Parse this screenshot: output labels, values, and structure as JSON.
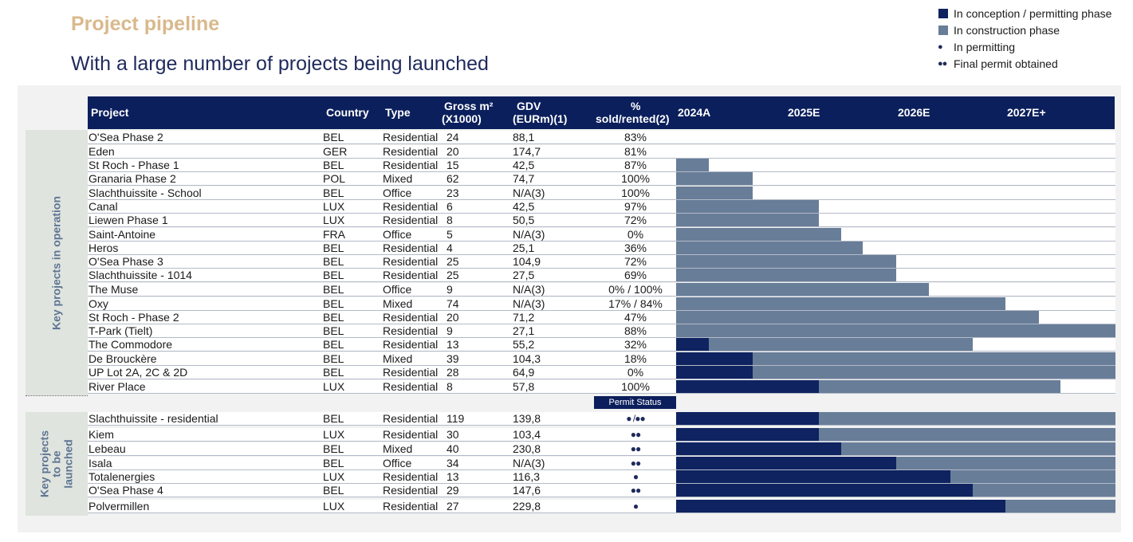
{
  "title": "Project pipeline",
  "subtitle": "With a large number of projects being launched",
  "legend": [
    {
      "label": "In conception / permitting phase",
      "kind": "swatch",
      "color": "#0e2360",
      "icon": "dark-square-icon"
    },
    {
      "label": "In construction phase",
      "kind": "swatch",
      "color": "#687d98",
      "icon": "grey-square-icon"
    },
    {
      "label": "In permitting",
      "kind": "dots",
      "dots": "●",
      "icon": "single-dot-icon"
    },
    {
      "label": "Final permit obtained",
      "kind": "dots",
      "dots": "●●",
      "icon": "double-dot-icon"
    }
  ],
  "headers": {
    "project": "Project",
    "country": "Country",
    "type": "Type",
    "gross_line1": "Gross m²",
    "gross_line2": "(X1000)",
    "gdv_line1": "GDV",
    "gdv_line2": "(EURm)(1)",
    "pct_line1": "%",
    "pct_line2": "sold/rented(2)",
    "years": [
      "2024A",
      "2025E",
      "2026E",
      "2027E+"
    ]
  },
  "group_labels": {
    "operation": "Key projects in operation",
    "launch_lines": [
      "Key projects",
      "to be",
      "launched"
    ]
  },
  "permit_status_label": "Permit Status",
  "colors": {
    "conception": "#0e2360",
    "construction": "#687d98",
    "header": "#0b1f5c"
  },
  "chart_data": {
    "type": "table",
    "timeline_axis": {
      "min": 0,
      "max": 4,
      "unit": "years from start of 2024",
      "labels": [
        "2024A",
        "2025E",
        "2026E",
        "2027E+"
      ]
    },
    "groups": [
      {
        "name": "Key projects in operation",
        "rows": [
          {
            "project": "O'Sea Phase 2",
            "country": "BEL",
            "type": "Residential",
            "gross": "24",
            "gdv": "88,1",
            "pct": "83%",
            "conception": null,
            "construction": null
          },
          {
            "project": "Eden",
            "country": "GER",
            "type": "Residential",
            "gross": "20",
            "gdv": "174,7",
            "pct": "81%",
            "conception": null,
            "construction": null
          },
          {
            "project": "St Roch - Phase 1",
            "country": "BEL",
            "type": "Residential",
            "gross": "15",
            "gdv": "42,5",
            "pct": "87%",
            "conception": null,
            "construction": [
              0,
              0.3
            ]
          },
          {
            "project": "Granaria Phase 2",
            "country": "POL",
            "type": "Mixed",
            "gross": "62",
            "gdv": "74,7",
            "pct": "100%",
            "conception": null,
            "construction": [
              0,
              0.7
            ]
          },
          {
            "project": "Slachthuissite - School",
            "country": "BEL",
            "type": "Office",
            "gross": "23",
            "gdv": "N/A(3)",
            "pct": "100%",
            "conception": null,
            "construction": [
              0,
              0.7
            ]
          },
          {
            "project": "Canal",
            "country": "LUX",
            "type": "Residential",
            "gross": "6",
            "gdv": "42,5",
            "pct": "97%",
            "conception": null,
            "construction": [
              0,
              1.3
            ]
          },
          {
            "project": "Liewen Phase 1",
            "country": "LUX",
            "type": "Residential",
            "gross": "8",
            "gdv": "50,5",
            "pct": "72%",
            "conception": null,
            "construction": [
              0,
              1.3
            ]
          },
          {
            "project": "Saint-Antoine",
            "country": "FRA",
            "type": "Office",
            "gross": "5",
            "gdv": "N/A(3)",
            "pct": "0%",
            "conception": null,
            "construction": [
              0,
              1.5
            ]
          },
          {
            "project": "Heros",
            "country": "BEL",
            "type": "Residential",
            "gross": "4",
            "gdv": "25,1",
            "pct": "36%",
            "conception": null,
            "construction": [
              0,
              1.7
            ]
          },
          {
            "project": "O'Sea Phase 3",
            "country": "BEL",
            "type": "Residential",
            "gross": "25",
            "gdv": "104,9",
            "pct": "72%",
            "conception": null,
            "construction": [
              0,
              2.0
            ]
          },
          {
            "project": "Slachthuissite - 1014",
            "country": "BEL",
            "type": "Residential",
            "gross": "25",
            "gdv": "27,5",
            "pct": "69%",
            "conception": null,
            "construction": [
              0,
              2.0
            ]
          },
          {
            "project": "The Muse",
            "country": "BEL",
            "type": "Office",
            "gross": "9",
            "gdv": "N/A(3)",
            "pct": "0% / 100%",
            "conception": null,
            "construction": [
              0,
              2.3
            ]
          },
          {
            "project": "Oxy",
            "country": "BEL",
            "type": "Mixed",
            "gross": "74",
            "gdv": "N/A(3)",
            "pct": "17% / 84%",
            "conception": null,
            "construction": [
              0,
              3.0
            ]
          },
          {
            "project": "St Roch - Phase 2",
            "country": "BEL",
            "type": "Residential",
            "gross": "20",
            "gdv": "71,2",
            "pct": "47%",
            "conception": null,
            "construction": [
              0,
              3.3
            ]
          },
          {
            "project": "T-Park (Tielt)",
            "country": "BEL",
            "type": "Residential",
            "gross": "9",
            "gdv": "27,1",
            "pct": "88%",
            "conception": null,
            "construction": [
              0,
              4.0
            ]
          },
          {
            "project": "The Commodore",
            "country": "BEL",
            "type": "Residential",
            "gross": "13",
            "gdv": "55,2",
            "pct": "32%",
            "conception": [
              0,
              0.3
            ],
            "construction": [
              0.3,
              2.7
            ]
          },
          {
            "project": "De Brouckère",
            "country": "BEL",
            "type": "Mixed",
            "gross": "39",
            "gdv": "104,3",
            "pct": "18%",
            "conception": [
              0,
              0.7
            ],
            "construction": [
              0.7,
              4.0
            ]
          },
          {
            "project": "UP Lot 2A, 2C & 2D",
            "country": "BEL",
            "type": "Residential",
            "gross": "28",
            "gdv": "64,9",
            "pct": "0%",
            "conception": [
              0,
              0.7
            ],
            "construction": [
              0.7,
              4.0
            ]
          },
          {
            "project": "River Place",
            "country": "LUX",
            "type": "Residential",
            "gross": "8",
            "gdv": "57,8",
            "pct": "100%",
            "conception": [
              0,
              1.3
            ],
            "construction": [
              1.3,
              3.5
            ]
          }
        ]
      },
      {
        "name": "Key projects to be launched",
        "rows": [
          {
            "project": "Slachthuissite - residential",
            "country": "BEL",
            "type": "Residential",
            "gross": "119",
            "gdv": "139,8",
            "permit": "● /●●",
            "conception": [
              0,
              1.3
            ],
            "construction": [
              1.3,
              4.0
            ]
          },
          {
            "project": "Kiem",
            "country": "LUX",
            "type": "Residential",
            "gross": "30",
            "gdv": "103,4",
            "permit": "●●",
            "conception": [
              0,
              1.3
            ],
            "construction": [
              1.3,
              4.0
            ]
          },
          {
            "project": "Lebeau",
            "country": "BEL",
            "type": "Mixed",
            "gross": "40",
            "gdv": "230,8",
            "permit": "●●",
            "conception": [
              0,
              1.5
            ],
            "construction": [
              1.5,
              4.0
            ]
          },
          {
            "project": "Isala",
            "country": "BEL",
            "type": "Office",
            "gross": "34",
            "gdv": "N/A(3)",
            "permit": "●●",
            "conception": [
              0,
              2.0
            ],
            "construction": [
              2.0,
              4.0
            ]
          },
          {
            "project": "Totalenergies",
            "country": "LUX",
            "type": "Residential",
            "gross": "13",
            "gdv": "116,3",
            "permit": "●",
            "conception": [
              0,
              2.5
            ],
            "construction": [
              2.5,
              4.0
            ]
          },
          {
            "project": "O'Sea Phase 4",
            "country": "BEL",
            "type": "Residential",
            "gross": "29",
            "gdv": "147,6",
            "permit": "●●",
            "conception": [
              0,
              2.7
            ],
            "construction": [
              2.7,
              4.0
            ]
          },
          {
            "project": "Polvermillen",
            "country": "LUX",
            "type": "Residential",
            "gross": "27",
            "gdv": "229,8",
            "permit": "●",
            "conception": [
              0,
              3.0
            ],
            "construction": [
              3.0,
              4.0
            ]
          }
        ]
      }
    ]
  }
}
